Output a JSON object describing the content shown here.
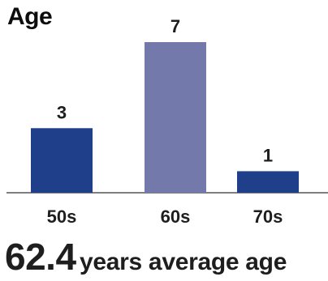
{
  "chart_data": {
    "type": "bar",
    "title": "Age",
    "categories": [
      "50s",
      "60s",
      "70s"
    ],
    "values": [
      3,
      7,
      1
    ],
    "colors": [
      "#1f3f8a",
      "#7479ac",
      "#1f3f8a"
    ],
    "ylim": [
      0,
      7
    ],
    "grid": false,
    "legend": "none"
  },
  "summary": {
    "value": "62.4",
    "label": "years average age"
  }
}
